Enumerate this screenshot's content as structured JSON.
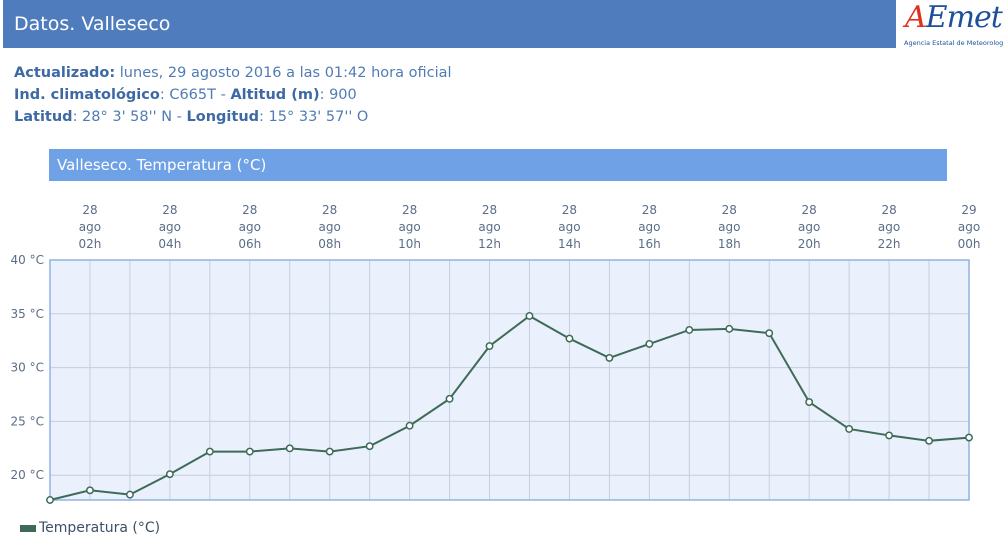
{
  "header": {
    "title": "Datos. Valleseco"
  },
  "logo": {
    "wordmark_a": "A",
    "wordmark_rest": "Emet",
    "subtitle": "Agencia Estatal de Meteorología"
  },
  "info": {
    "updated_label": "Actualizado:",
    "updated_value": " lunes, 29 agosto 2016 a las 01:42 hora oficial",
    "indicator_label": "Ind. climatológico",
    "indicator_value": ": C665T - ",
    "altitude_label": "Altitud (m)",
    "altitude_value": ": 900",
    "lat_label": "Latitud",
    "lat_value": ": 28° 3' 58'' N - ",
    "lon_label": "Longitud",
    "lon_value": ": 15° 33' 57'' O"
  },
  "panel": {
    "title": "Valleseco. Temperatura (°C)"
  },
  "legend": {
    "label": "Temperatura (°C)"
  },
  "chart_data": {
    "type": "line",
    "title": "Valleseco. Temperatura (°C)",
    "x_tick_labels": [
      [
        "28",
        "ago",
        "02h"
      ],
      [
        "28",
        "ago",
        "04h"
      ],
      [
        "28",
        "ago",
        "06h"
      ],
      [
        "28",
        "ago",
        "08h"
      ],
      [
        "28",
        "ago",
        "10h"
      ],
      [
        "28",
        "ago",
        "12h"
      ],
      [
        "28",
        "ago",
        "14h"
      ],
      [
        "28",
        "ago",
        "16h"
      ],
      [
        "28",
        "ago",
        "18h"
      ],
      [
        "28",
        "ago",
        "20h"
      ],
      [
        "28",
        "ago",
        "22h"
      ],
      [
        "29",
        "ago",
        "00h"
      ]
    ],
    "y_tick_labels": [
      "40 °C",
      "35 °C",
      "30 °C",
      "25 °C",
      "20 °C"
    ],
    "y_ticks": [
      40,
      35,
      30,
      25,
      20
    ],
    "ylim": [
      17.7,
      40
    ],
    "x_hours": [
      1,
      2,
      3,
      4,
      5,
      6,
      7,
      8,
      9,
      10,
      11,
      12,
      13,
      14,
      15,
      16,
      17,
      18,
      19,
      20,
      21,
      22,
      23,
      24
    ],
    "xlim": [
      1,
      24
    ],
    "series": [
      {
        "name": "Temperatura (°C)",
        "color": "#3e6b58",
        "values": [
          17.7,
          18.6,
          18.2,
          20.1,
          22.2,
          22.2,
          22.5,
          22.2,
          22.7,
          24.6,
          27.1,
          32.0,
          34.8,
          32.7,
          30.9,
          32.2,
          33.5,
          33.6,
          33.2,
          26.8,
          24.3,
          23.7,
          23.2,
          23.5
        ]
      }
    ],
    "grid": true,
    "legend_position": "bottom-left"
  }
}
